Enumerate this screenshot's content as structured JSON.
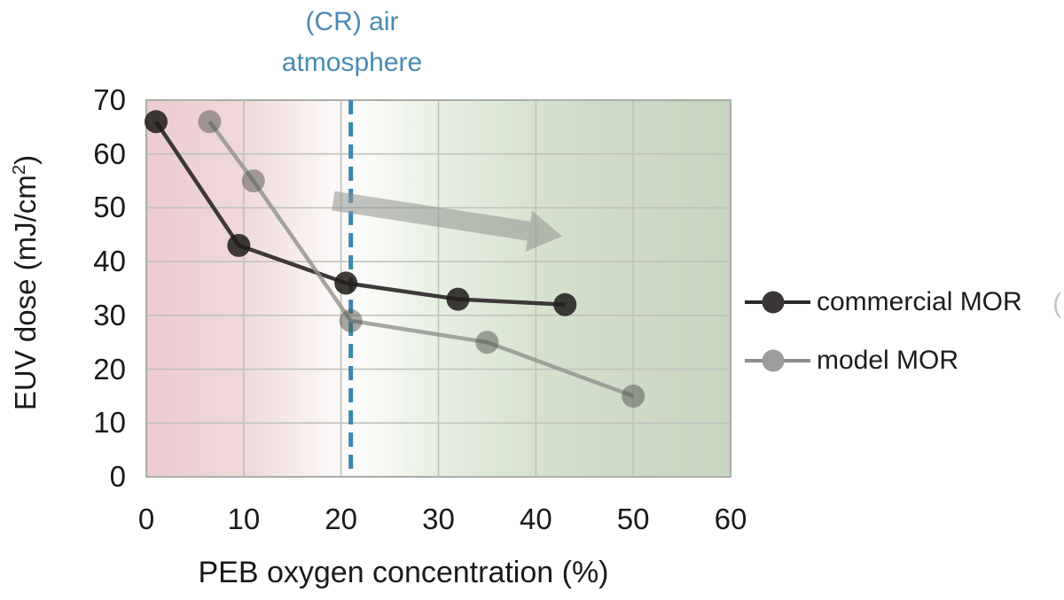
{
  "title": {
    "line1": "(CR) air",
    "line2": "atmosphere",
    "color": "#4a8ab2"
  },
  "legend": {
    "clipped_fragment": "("
  },
  "chart_data": {
    "type": "line",
    "annotation": "(CR) air atmosphere",
    "xlabel": "PEB oxygen concentration (%)",
    "ylabel": "EUV dose (mJ/cm²)",
    "ylabel_parts": {
      "main": "EUV dose (mJ/cm",
      "sup": "2",
      "end": ")"
    },
    "xlim": [
      0,
      60
    ],
    "ylim": [
      0,
      70
    ],
    "xticks": [
      0,
      10,
      20,
      30,
      40,
      50,
      60
    ],
    "yticks": [
      0,
      10,
      20,
      30,
      40,
      50,
      60,
      70
    ],
    "grid": true,
    "grid_color": "#c0c2bc",
    "border_color": "#abada7",
    "axis_text_color": "#1a1a1a",
    "legend_position": "right",
    "background_gradient": [
      {
        "offset": 0.0,
        "color": "#ecccd0"
      },
      {
        "offset": 0.17,
        "color": "#f0d9da"
      },
      {
        "offset": 0.31,
        "color": "#fbf7f6"
      },
      {
        "offset": 0.37,
        "color": "#fbfcfa"
      },
      {
        "offset": 0.5,
        "color": "#e7efe1"
      },
      {
        "offset": 0.67,
        "color": "#d7e2ce"
      },
      {
        "offset": 0.83,
        "color": "#cedac5"
      },
      {
        "offset": 1.0,
        "color": "#c8d5bf"
      }
    ],
    "reference_line": {
      "x": 21,
      "label": "(CR) air atmosphere",
      "color": "#3d86af",
      "dash": [
        16,
        9
      ],
      "width": 5
    },
    "trend_arrow": {
      "from_x": 19.2,
      "from_y": 51.3,
      "to_x": 42.7,
      "to_y": 44.7,
      "color": "#90938e",
      "opacity": 0.55
    },
    "series": [
      {
        "name": "commercial MOR",
        "x": [
          1,
          9.5,
          20.5,
          32,
          43
        ],
        "y": [
          66,
          43,
          36,
          33,
          32
        ],
        "line_color": "#332e2f",
        "line_opacity": 0.95,
        "marker_color": "#201c1a",
        "marker_opacity": 0.86,
        "legend_line_color": "#2c292b",
        "legend_marker_color": "#393539"
      },
      {
        "name": "model MOR",
        "x": [
          6.5,
          11,
          21,
          35,
          50
        ],
        "y": [
          66,
          55,
          29,
          25,
          15
        ],
        "line_color": "#8e918c",
        "line_opacity": 0.8,
        "marker_color": "#4f544b",
        "marker_opacity": 0.5,
        "legend_line_color": "#8d8d8d",
        "legend_marker_color": "#9c9c9c"
      }
    ]
  }
}
